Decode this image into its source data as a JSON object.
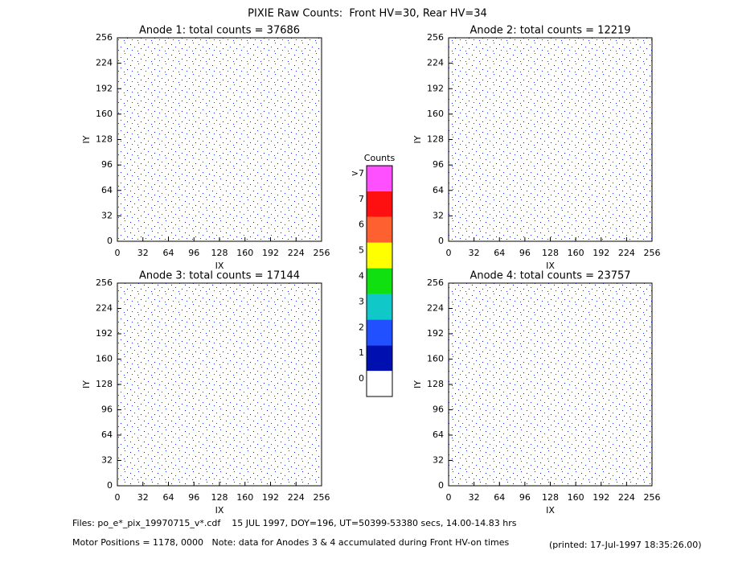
{
  "title": "PIXIE Raw Counts:  Front HV=30, Rear HV=34",
  "chart_data": [
    {
      "type": "heatmap",
      "title": "Anode 1: total counts = 37686",
      "x_label": "IX",
      "y_label": "IY",
      "xlim": [
        0,
        256
      ],
      "ylim": [
        0,
        256
      ],
      "xticks": [
        0,
        32,
        64,
        96,
        128,
        160,
        192,
        224,
        256
      ],
      "yticks": [
        0,
        32,
        64,
        96,
        128,
        160,
        192,
        224,
        256
      ]
    },
    {
      "type": "heatmap",
      "title": "Anode 2: total counts = 12219",
      "x_label": "IX",
      "y_label": "IY",
      "xlim": [
        0,
        256
      ],
      "ylim": [
        0,
        256
      ],
      "xticks": [
        0,
        32,
        64,
        96,
        128,
        160,
        192,
        224,
        256
      ],
      "yticks": [
        0,
        32,
        64,
        96,
        128,
        160,
        192,
        224,
        256
      ]
    },
    {
      "type": "heatmap",
      "title": "Anode 3: total counts = 17144",
      "x_label": "IX",
      "y_label": "IY",
      "xlim": [
        0,
        256
      ],
      "ylim": [
        0,
        256
      ],
      "xticks": [
        0,
        32,
        64,
        96,
        128,
        160,
        192,
        224,
        256
      ],
      "yticks": [
        0,
        32,
        64,
        96,
        128,
        160,
        192,
        224,
        256
      ]
    },
    {
      "type": "heatmap",
      "title": "Anode 4: total counts = 23757",
      "x_label": "IX",
      "y_label": "IY",
      "xlim": [
        0,
        256
      ],
      "ylim": [
        0,
        256
      ],
      "xticks": [
        0,
        32,
        64,
        96,
        128,
        160,
        192,
        224,
        256
      ],
      "yticks": [
        0,
        32,
        64,
        96,
        128,
        160,
        192,
        224,
        256
      ]
    }
  ],
  "colorbar": {
    "title": "Counts",
    "labels": [
      "0",
      "1",
      "2",
      "3",
      "4",
      "5",
      "6",
      "7",
      ">7"
    ],
    "colors": [
      "#ffffff",
      "#0010b0",
      "#2050ff",
      "#10c8c8",
      "#10e010",
      "#ffff00",
      "#ff6030",
      "#ff1010",
      "#ff50ff"
    ]
  },
  "footer": {
    "files": "Files: po_e*_pix_19970715_v*.cdf    15 JUL 1997, DOY=196, UT=50399-53380 secs, 14.00-14.83 hrs",
    "motor": "Motor Positions = 1178, 0000   Note: data for Anodes 3 & 4 accumulated during Front HV-on times",
    "printed": "(printed: 17-Jul-1997 18:35:26.00)"
  }
}
